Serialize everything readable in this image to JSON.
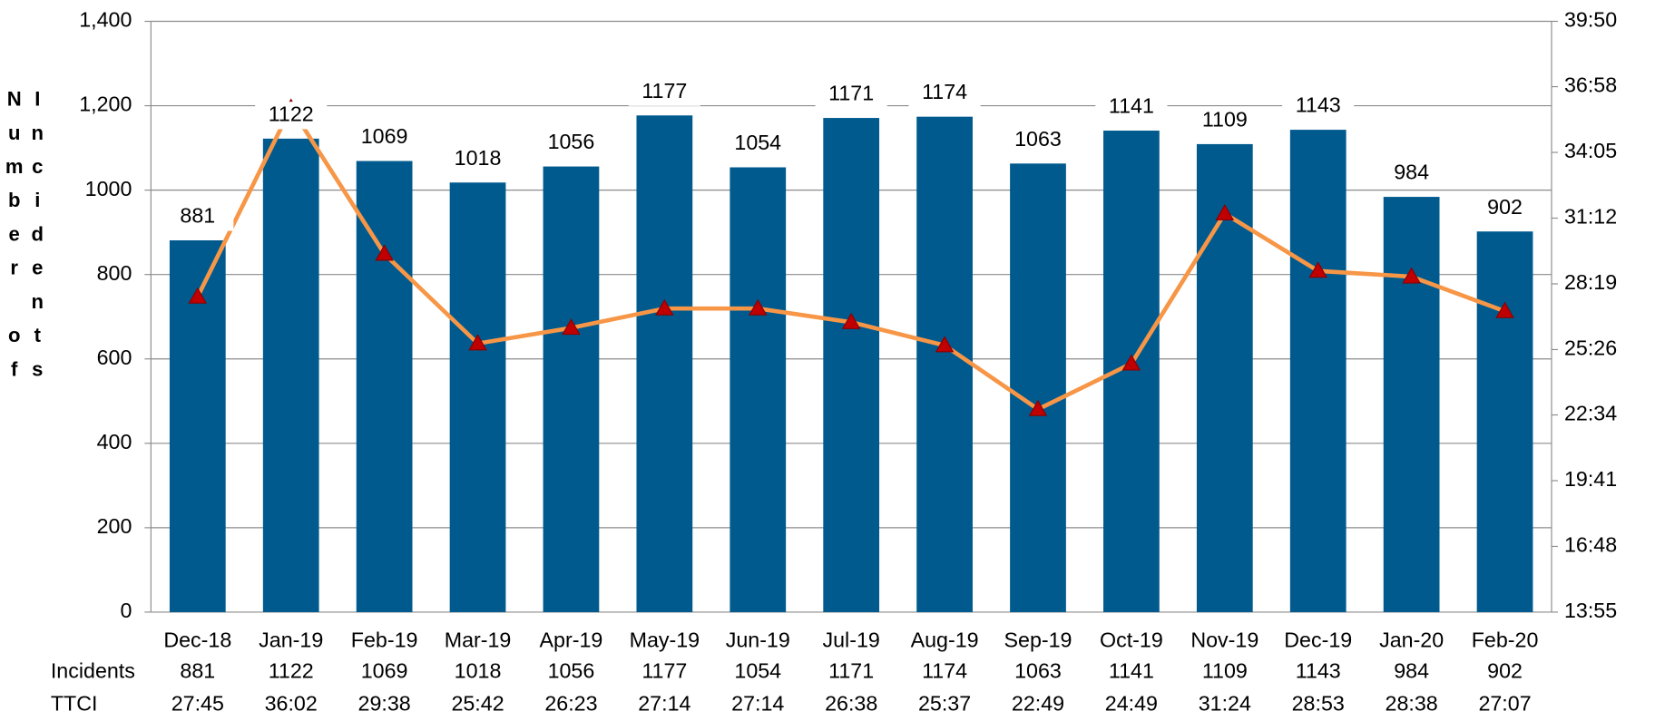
{
  "chart_data": {
    "type": "bar",
    "y_axis_label": "Number of Incidents",
    "categories": [
      "Dec-18",
      "Jan-19",
      "Feb-19",
      "Mar-19",
      "Apr-19",
      "May-19",
      "Jun-19",
      "Jul-19",
      "Aug-19",
      "Sep-19",
      "Oct-19",
      "Nov-19",
      "Dec-19",
      "Jan-20",
      "Feb-20"
    ],
    "series": [
      {
        "name": "Incidents",
        "type": "bar",
        "color": "#005a8e",
        "values": [
          881,
          1122,
          1069,
          1018,
          1056,
          1177,
          1054,
          1171,
          1174,
          1063,
          1141,
          1109,
          1143,
          984,
          902
        ]
      },
      {
        "name": "TTCI",
        "type": "line",
        "axis": "y2",
        "color": "#f79646",
        "marker_color": "#c00000",
        "values": [
          1665,
          2162,
          1778,
          1542,
          1583,
          1634,
          1634,
          1598,
          1537,
          1369,
          1489,
          1884,
          1733,
          1718,
          1627
        ],
        "value_labels": [
          "27:45",
          "36:02",
          "29:38",
          "25:42",
          "26:23",
          "27:14",
          "27:14",
          "26:38",
          "25:37",
          "22:49",
          "24:49",
          "31:24",
          "28:53",
          "28:38",
          "27:07"
        ]
      }
    ],
    "ylim": [
      0,
      1400
    ],
    "yticks": [
      0,
      200,
      400,
      600,
      800,
      1000,
      {
        "value": 1200,
        "label": "1,200"
      },
      {
        "value": 1400,
        "label": "1,400"
      }
    ],
    "y2lim": [
      835,
      2390
    ],
    "y2ticks": [
      {
        "value": 835,
        "label": "13:55"
      },
      {
        "value": 1008,
        "label": "16:48"
      },
      {
        "value": 1181,
        "label": "19:41"
      },
      {
        "value": 1354,
        "label": "22:34"
      },
      {
        "value": 1526,
        "label": "25:26"
      },
      {
        "value": 1699,
        "label": "28:19"
      },
      {
        "value": 1872,
        "label": "31:12"
      },
      {
        "value": 2045,
        "label": "34:05"
      },
      {
        "value": 2218,
        "label": "36:58"
      },
      {
        "value": 2390,
        "label": "39:50"
      }
    ],
    "grid": true,
    "data_table": true
  }
}
